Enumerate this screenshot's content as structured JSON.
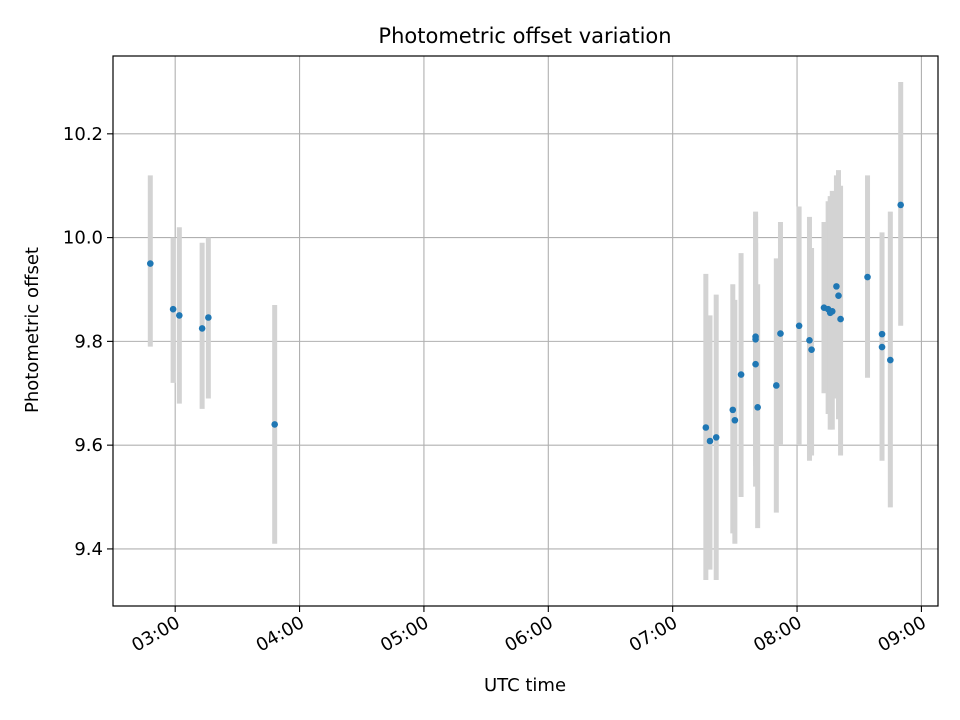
{
  "chart_data": {
    "type": "scatter",
    "title": "Photometric offset variation",
    "xlabel": "UTC time",
    "ylabel": "Photometric offset",
    "x_unit": "UTC time (HH:MM)",
    "xlim": [
      "02:30",
      "09:08"
    ],
    "ylim": [
      9.29,
      10.35
    ],
    "x_ticks": [
      "03:00",
      "04:00",
      "05:00",
      "06:00",
      "07:00",
      "08:00",
      "09:00"
    ],
    "y_ticks": [
      "9.4",
      "9.6",
      "9.8",
      "10.0",
      "10.2"
    ],
    "grid": true,
    "legend": "none",
    "colors": {
      "point": "#1f77b4",
      "errorbar": "#d3d3d3",
      "grid": "#b0b0b0"
    },
    "points": [
      {
        "x": "02:48",
        "y": 9.95,
        "err_low": 9.79,
        "err_high": 10.12
      },
      {
        "x": "02:59",
        "y": 9.862,
        "err_low": 9.72,
        "err_high": 10.0
      },
      {
        "x": "03:02",
        "y": 9.85,
        "err_low": 9.68,
        "err_high": 10.02
      },
      {
        "x": "03:13",
        "y": 9.825,
        "err_low": 9.67,
        "err_high": 9.99
      },
      {
        "x": "03:16",
        "y": 9.846,
        "err_low": 9.69,
        "err_high": 10.0
      },
      {
        "x": "03:48",
        "y": 9.64,
        "err_low": 9.41,
        "err_high": 9.87
      },
      {
        "x": "07:16",
        "y": 9.634,
        "err_low": 9.34,
        "err_high": 9.93
      },
      {
        "x": "07:18",
        "y": 9.608,
        "err_low": 9.36,
        "err_high": 9.85
      },
      {
        "x": "07:21",
        "y": 9.615,
        "err_low": 9.34,
        "err_high": 9.89
      },
      {
        "x": "07:29",
        "y": 9.668,
        "err_low": 9.43,
        "err_high": 9.91
      },
      {
        "x": "07:30",
        "y": 9.648,
        "err_low": 9.41,
        "err_high": 9.88
      },
      {
        "x": "07:33",
        "y": 9.736,
        "err_low": 9.5,
        "err_high": 9.97
      },
      {
        "x": "07:40",
        "y": 9.809,
        "err_low": 9.57,
        "err_high": 10.05
      },
      {
        "x": "07:40",
        "y": 9.804,
        "err_low": 9.56,
        "err_high": 10.04
      },
      {
        "x": "07:40",
        "y": 9.756,
        "err_low": 9.52,
        "err_high": 9.99
      },
      {
        "x": "07:41",
        "y": 9.673,
        "err_low": 9.44,
        "err_high": 9.91
      },
      {
        "x": "07:50",
        "y": 9.715,
        "err_low": 9.47,
        "err_high": 9.96
      },
      {
        "x": "07:52",
        "y": 9.815,
        "err_low": 9.6,
        "err_high": 10.03
      },
      {
        "x": "08:01",
        "y": 9.83,
        "err_low": 9.6,
        "err_high": 10.06
      },
      {
        "x": "08:06",
        "y": 9.802,
        "err_low": 9.57,
        "err_high": 10.04
      },
      {
        "x": "08:07",
        "y": 9.784,
        "err_low": 9.58,
        "err_high": 9.98
      },
      {
        "x": "08:13",
        "y": 9.865,
        "err_low": 9.7,
        "err_high": 10.03
      },
      {
        "x": "08:15",
        "y": 9.862,
        "err_low": 9.66,
        "err_high": 10.07
      },
      {
        "x": "08:16",
        "y": 9.855,
        "err_low": 9.63,
        "err_high": 10.08
      },
      {
        "x": "08:17",
        "y": 9.858,
        "err_low": 9.63,
        "err_high": 10.09
      },
      {
        "x": "08:19",
        "y": 9.906,
        "err_low": 9.69,
        "err_high": 10.12
      },
      {
        "x": "08:20",
        "y": 9.888,
        "err_low": 9.65,
        "err_high": 10.13
      },
      {
        "x": "08:21",
        "y": 9.843,
        "err_low": 9.58,
        "err_high": 10.1
      },
      {
        "x": "08:34",
        "y": 9.924,
        "err_low": 9.73,
        "err_high": 10.12
      },
      {
        "x": "08:41",
        "y": 9.814,
        "err_low": 9.64,
        "err_high": 9.99
      },
      {
        "x": "08:41",
        "y": 9.789,
        "err_low": 9.57,
        "err_high": 10.01
      },
      {
        "x": "08:45",
        "y": 9.764,
        "err_low": 9.48,
        "err_high": 10.05
      },
      {
        "x": "08:50",
        "y": 10.063,
        "err_low": 9.83,
        "err_high": 10.3
      }
    ]
  }
}
